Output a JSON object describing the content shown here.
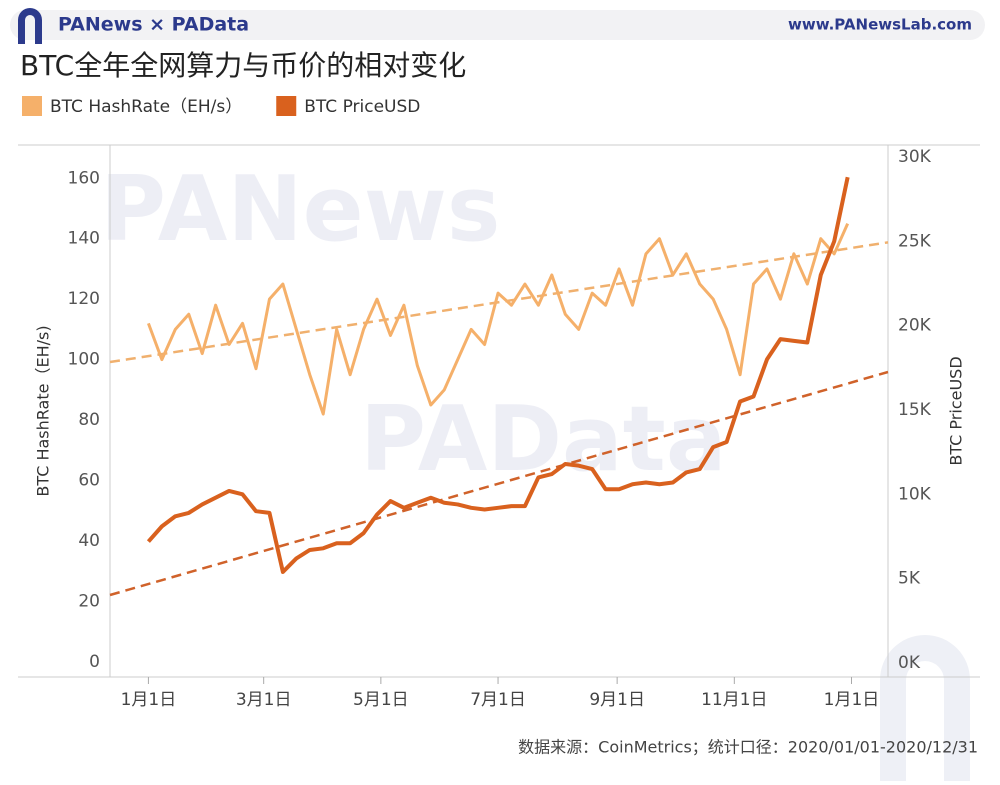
{
  "header": {
    "brand": "PANews × PAData",
    "site": "www.PANewsLab.com"
  },
  "source": "数据来源：CoinMetrics；统计口径：2020/01/01-2020/12/31",
  "chart_data": {
    "type": "line",
    "title": "BTC全年全网算力与币价的相对变化",
    "y_label": "BTC HashRate（EH/s)",
    "y2_label": "BTC PriceUSD",
    "xlim": [
      -20,
      385
    ],
    "xticks": [
      {
        "value": 0,
        "label": "1月1日"
      },
      {
        "value": 60,
        "label": "3月1日"
      },
      {
        "value": 121,
        "label": "5月1日"
      },
      {
        "value": 182,
        "label": "7月1日"
      },
      {
        "value": 244,
        "label": "9月1日"
      },
      {
        "value": 305,
        "label": "11月1日"
      },
      {
        "value": 366,
        "label": "1月1日"
      }
    ],
    "ylim": [
      -5,
      171
    ],
    "yticks": [
      0,
      20,
      40,
      60,
      80,
      100,
      120,
      140,
      160
    ],
    "y2lim": [
      -830,
      30710
    ],
    "y2ticks": [
      {
        "value": 0,
        "label": "0K"
      },
      {
        "value": 5000,
        "label": "5K"
      },
      {
        "value": 10000,
        "label": "10K"
      },
      {
        "value": 15000,
        "label": "15K"
      },
      {
        "value": 20000,
        "label": "20K"
      },
      {
        "value": 25000,
        "label": "25K"
      },
      {
        "value": 30000,
        "label": "30K"
      }
    ],
    "x": [
      0,
      7,
      14,
      21,
      28,
      35,
      42,
      49,
      56,
      63,
      70,
      77,
      84,
      91,
      98,
      105,
      112,
      119,
      126,
      133,
      140,
      147,
      154,
      161,
      168,
      175,
      182,
      189,
      196,
      203,
      210,
      217,
      224,
      231,
      238,
      245,
      252,
      259,
      266,
      273,
      280,
      287,
      294,
      301,
      308,
      315,
      322,
      329,
      336,
      343,
      350,
      357,
      364
    ],
    "series": [
      {
        "name": "BTC HashRate（EH/s）",
        "color": "#f5b06a",
        "axis": "y",
        "values": [
          112,
          100,
          110,
          115,
          102,
          118,
          105,
          112,
          97,
          120,
          125,
          110,
          95,
          82,
          110,
          95,
          110,
          120,
          108,
          118,
          98,
          85,
          90,
          100,
          110,
          105,
          122,
          118,
          125,
          118,
          128,
          115,
          110,
          122,
          118,
          130,
          118,
          135,
          140,
          128,
          135,
          125,
          120,
          110,
          95,
          125,
          130,
          120,
          135,
          125,
          140,
          135,
          145
        ]
      },
      {
        "name": "BTC PriceUSD",
        "color": "#d9611e",
        "axis": "y2",
        "values": [
          7200,
          8100,
          8700,
          8900,
          9400,
          9800,
          10200,
          10000,
          9000,
          8900,
          5400,
          6200,
          6700,
          6800,
          7100,
          7100,
          7700,
          8800,
          9600,
          9200,
          9500,
          9800,
          9500,
          9400,
          9200,
          9100,
          9200,
          9300,
          9300,
          11000,
          11200,
          11800,
          11700,
          11500,
          10300,
          10300,
          10600,
          10700,
          10600,
          10700,
          11300,
          11500,
          12800,
          13100,
          15500,
          15800,
          18000,
          19200,
          19100,
          19000,
          23000,
          25000,
          28800
        ]
      }
    ],
    "trendlines": [
      {
        "axis": "y",
        "color": "#f0b06e",
        "x": [
          -20,
          385
        ],
        "values": [
          99.2,
          138.8
        ]
      },
      {
        "axis": "y2",
        "color": "#d0622a",
        "x": [
          -20,
          385
        ],
        "values": [
          4031,
          17252
        ]
      }
    ]
  }
}
